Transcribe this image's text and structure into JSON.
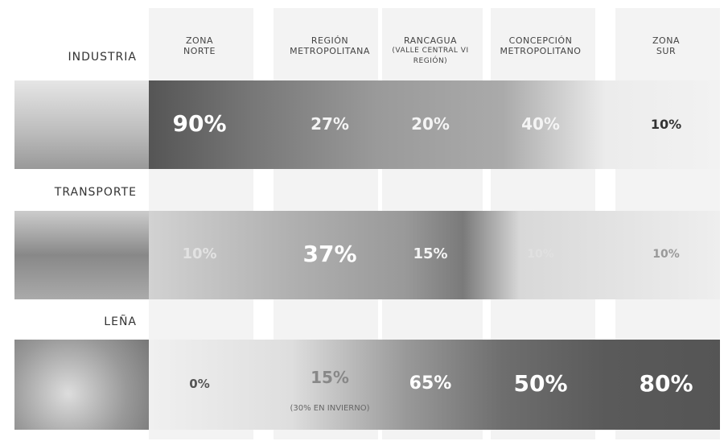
{
  "headers": [
    {
      "line1": "ZONA",
      "line2": "NORTE"
    },
    {
      "line1": "REGIÓN",
      "line2": "METROPOLITANA"
    },
    {
      "line1": "RANCAGUA",
      "line2": "(VALLE CENTRAL VI REGIÓN)"
    },
    {
      "line1": "CONCEPCIÓN",
      "line2": "METROPOLITANO"
    },
    {
      "line1": "ZONA",
      "line2": "SUR"
    }
  ],
  "rows": [
    {
      "label": "INDUSTRIA",
      "cells": [
        "90%",
        "27%",
        "20%",
        "40%",
        "10%"
      ]
    },
    {
      "label": "TRANSPORTE",
      "cells": [
        "10%",
        "37%",
        "15%",
        "10%",
        "10%"
      ]
    },
    {
      "label": "LEÑA",
      "cells": [
        "0%",
        "15%",
        "65%",
        "50%",
        "80%"
      ],
      "note": "(30% EN INVIERNO)"
    }
  ]
}
